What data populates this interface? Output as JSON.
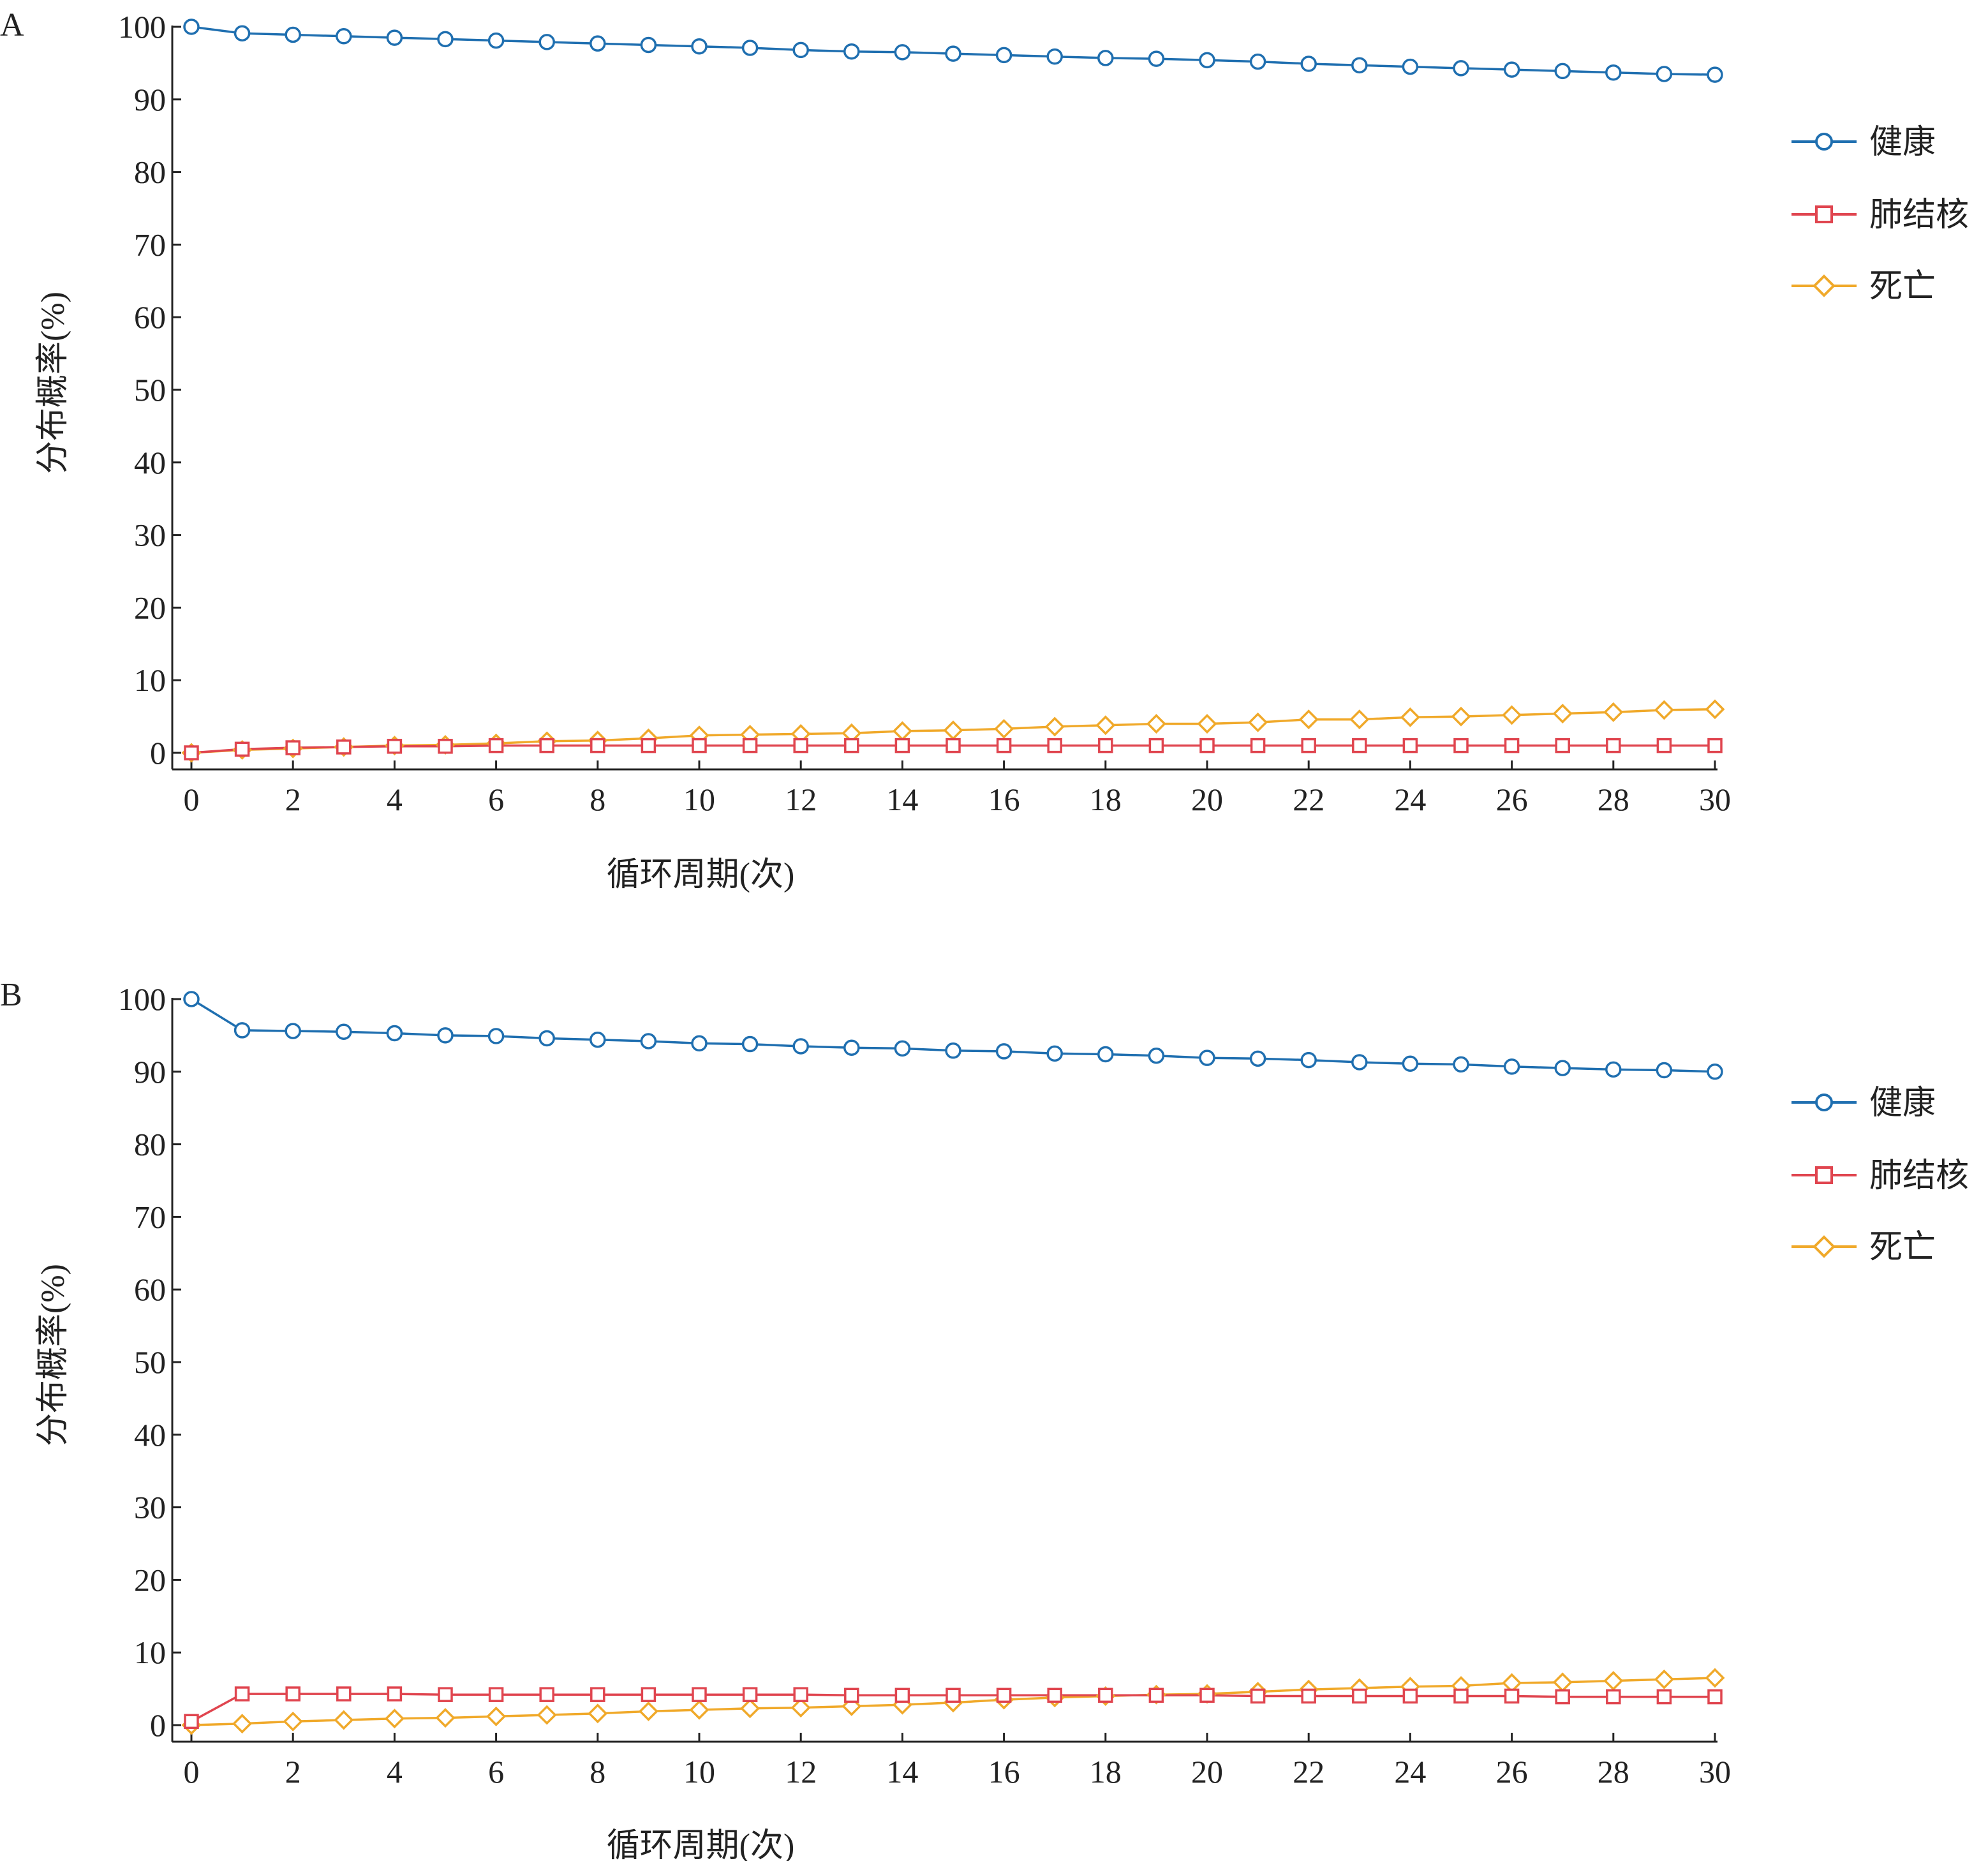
{
  "chart_data": [
    {
      "type": "line",
      "panel_label": "A",
      "xlabel": "循环周期(次)",
      "ylabel": "分布概率(%)",
      "xlim": [
        0,
        30
      ],
      "ylim": [
        0,
        100
      ],
      "xticks": [
        0,
        2,
        4,
        6,
        8,
        10,
        12,
        14,
        16,
        18,
        20,
        22,
        24,
        26,
        28,
        30
      ],
      "yticks": [
        0,
        10,
        20,
        30,
        40,
        50,
        60,
        70,
        80,
        90,
        100
      ],
      "grid": false,
      "legend_position": "right",
      "x": [
        0,
        1,
        2,
        3,
        4,
        5,
        6,
        7,
        8,
        9,
        10,
        11,
        12,
        13,
        14,
        15,
        16,
        17,
        18,
        19,
        20,
        21,
        22,
        23,
        24,
        25,
        26,
        27,
        28,
        29,
        30
      ],
      "series": [
        {
          "name": "健康",
          "color": "#1f6fb0",
          "marker": "circle",
          "values": [
            100,
            99.1,
            98.9,
            98.7,
            98.5,
            98.3,
            98.1,
            97.9,
            97.7,
            97.5,
            97.3,
            97.1,
            96.8,
            96.6,
            96.5,
            96.3,
            96.1,
            95.9,
            95.7,
            95.6,
            95.4,
            95.2,
            94.9,
            94.7,
            94.5,
            94.3,
            94.1,
            93.9,
            93.7,
            93.5,
            93.4
          ]
        },
        {
          "name": "肺结核",
          "color": "#e0454f",
          "marker": "square",
          "values": [
            0,
            0.5,
            0.7,
            0.8,
            0.9,
            0.9,
            1.0,
            1.0,
            1.0,
            1.0,
            1.0,
            1.0,
            1.0,
            1.0,
            1.0,
            1.0,
            1.0,
            1.0,
            1.0,
            1.0,
            1.0,
            1.0,
            1.0,
            1.0,
            1.0,
            1.0,
            1.0,
            1.0,
            1.0,
            1.0,
            1.0
          ]
        },
        {
          "name": "死亡",
          "color": "#f0a92a",
          "marker": "diamond",
          "values": [
            0,
            0.4,
            0.6,
            0.8,
            1.0,
            1.1,
            1.3,
            1.6,
            1.7,
            2.0,
            2.4,
            2.5,
            2.6,
            2.7,
            3.0,
            3.1,
            3.3,
            3.6,
            3.8,
            4.0,
            4.0,
            4.2,
            4.6,
            4.6,
            4.9,
            5.0,
            5.2,
            5.4,
            5.6,
            5.9,
            6.0
          ]
        }
      ]
    },
    {
      "type": "line",
      "panel_label": "B",
      "xlabel": "循环周期(次)",
      "ylabel": "分布概率(%)",
      "xlim": [
        0,
        30
      ],
      "ylim": [
        0,
        100
      ],
      "xticks": [
        0,
        2,
        4,
        6,
        8,
        10,
        12,
        14,
        16,
        18,
        20,
        22,
        24,
        26,
        28,
        30
      ],
      "yticks": [
        0,
        10,
        20,
        30,
        40,
        50,
        60,
        70,
        80,
        90,
        100
      ],
      "grid": false,
      "legend_position": "right",
      "x": [
        0,
        1,
        2,
        3,
        4,
        5,
        6,
        7,
        8,
        9,
        10,
        11,
        12,
        13,
        14,
        15,
        16,
        17,
        18,
        19,
        20,
        21,
        22,
        23,
        24,
        25,
        26,
        27,
        28,
        29,
        30
      ],
      "series": [
        {
          "name": "健康",
          "color": "#1f6fb0",
          "marker": "circle",
          "values": [
            100,
            95.7,
            95.6,
            95.5,
            95.3,
            95.0,
            94.9,
            94.6,
            94.4,
            94.2,
            93.9,
            93.8,
            93.5,
            93.3,
            93.2,
            92.9,
            92.8,
            92.5,
            92.4,
            92.2,
            91.9,
            91.8,
            91.6,
            91.3,
            91.1,
            91.0,
            90.7,
            90.5,
            90.3,
            90.2,
            90.0
          ]
        },
        {
          "name": "肺结核",
          "color": "#e0454f",
          "marker": "square",
          "values": [
            0.5,
            4.3,
            4.3,
            4.3,
            4.3,
            4.2,
            4.2,
            4.2,
            4.2,
            4.2,
            4.2,
            4.2,
            4.2,
            4.1,
            4.1,
            4.1,
            4.1,
            4.1,
            4.1,
            4.1,
            4.1,
            4.0,
            4.0,
            4.0,
            4.0,
            4.0,
            4.0,
            3.9,
            3.9,
            3.9,
            3.9
          ]
        },
        {
          "name": "死亡",
          "color": "#f0a92a",
          "marker": "diamond",
          "values": [
            0,
            0.2,
            0.5,
            0.7,
            0.9,
            1.0,
            1.2,
            1.4,
            1.6,
            1.9,
            2.1,
            2.3,
            2.4,
            2.6,
            2.8,
            3.1,
            3.5,
            3.8,
            4.0,
            4.2,
            4.3,
            4.6,
            4.9,
            5.1,
            5.3,
            5.4,
            5.8,
            5.9,
            6.1,
            6.3,
            6.5
          ]
        }
      ]
    }
  ]
}
